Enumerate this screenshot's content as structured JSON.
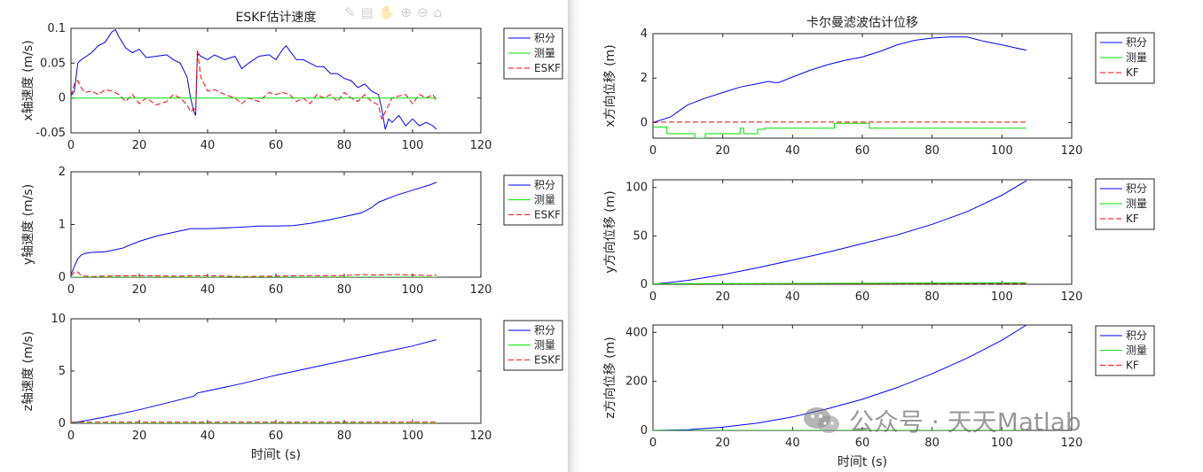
{
  "toolbar": {
    "icons": [
      "brush-icon",
      "data-tip-icon",
      "pan-icon",
      "zoom-in-icon",
      "zoom-out-icon",
      "home-icon"
    ]
  },
  "watermark": {
    "text": "公众号 · 天天Matlab"
  },
  "colors": {
    "integral": "#0000ff",
    "measure": "#00dd00",
    "filter": "#ff0000"
  },
  "chart_data": [
    {
      "id": "eskf_vx",
      "type": "line",
      "title": "ESKF估计速度",
      "xlabel": "",
      "ylabel": "x轴速度 (m/s)",
      "xlim": [
        0,
        120
      ],
      "ylim": [
        -0.05,
        0.1
      ],
      "xticks": [
        "0",
        "20",
        "40",
        "60",
        "80",
        "100",
        "120"
      ],
      "yticks": [
        "-0.05",
        "0",
        "0.05",
        "0.1"
      ],
      "ytick_values": [
        -0.05,
        0,
        0.05,
        0.1
      ],
      "legend": [
        "积分",
        "测量",
        "ESKF"
      ],
      "series": [
        {
          "name": "积分",
          "style": "solid",
          "x": [
            0,
            1,
            2,
            3,
            4,
            6,
            8,
            10,
            12,
            13,
            14,
            16,
            18,
            20,
            22,
            25,
            28,
            30,
            32,
            34,
            35,
            36,
            36.5,
            37,
            38,
            40,
            42,
            45,
            48,
            50,
            52,
            55,
            58,
            60,
            62,
            63,
            64,
            66,
            68,
            70,
            72,
            74,
            76,
            78,
            80,
            82,
            84,
            86,
            88,
            90,
            91,
            92,
            93,
            94,
            96,
            98,
            100,
            102,
            104,
            106,
            107
          ],
          "y": [
            0.003,
            0.01,
            0.05,
            0.055,
            0.058,
            0.065,
            0.075,
            0.08,
            0.095,
            0.098,
            0.088,
            0.072,
            0.065,
            0.07,
            0.058,
            0.06,
            0.062,
            0.055,
            0.05,
            0.03,
            0.0,
            -0.02,
            -0.025,
            0.065,
            0.06,
            0.055,
            0.062,
            0.055,
            0.06,
            0.042,
            0.05,
            0.06,
            0.062,
            0.055,
            0.07,
            0.075,
            0.068,
            0.055,
            0.055,
            0.05,
            0.045,
            0.045,
            0.035,
            0.035,
            0.028,
            0.025,
            0.015,
            0.02,
            0.01,
            0.005,
            -0.015,
            -0.045,
            -0.03,
            -0.035,
            -0.025,
            -0.04,
            -0.03,
            -0.04,
            -0.035,
            -0.04,
            -0.045
          ]
        },
        {
          "name": "测量",
          "style": "solid",
          "x": [
            0,
            107
          ],
          "y": [
            0.0,
            0.0
          ]
        },
        {
          "name": "ESKF",
          "style": "dashed",
          "x": [
            0,
            1,
            2,
            3,
            4,
            6,
            8,
            10,
            12,
            14,
            16,
            18,
            20,
            22,
            25,
            28,
            30,
            32,
            34,
            35,
            36,
            36.5,
            37,
            38,
            40,
            42,
            45,
            48,
            50,
            52,
            55,
            58,
            60,
            62,
            64,
            66,
            68,
            70,
            72,
            74,
            76,
            78,
            80,
            82,
            84,
            86,
            88,
            90,
            91,
            92,
            94,
            96,
            98,
            100,
            102,
            104,
            106,
            107
          ],
          "y": [
            0.003,
            0.02,
            0.025,
            0.015,
            0.008,
            0.01,
            0.005,
            0.012,
            0.01,
            0.005,
            -0.005,
            0.005,
            -0.008,
            0.0,
            -0.01,
            -0.005,
            0.005,
            0.0,
            -0.01,
            -0.02,
            -0.015,
            -0.02,
            0.07,
            0.03,
            0.01,
            0.012,
            0.005,
            0.0,
            -0.008,
            0.0,
            -0.005,
            0.008,
            0.005,
            0.008,
            0.005,
            -0.005,
            0.0,
            -0.008,
            0.005,
            0.0,
            0.005,
            -0.005,
            0.008,
            0.0,
            -0.005,
            0.005,
            -0.005,
            -0.01,
            -0.03,
            -0.02,
            0.0,
            0.003,
            0.005,
            -0.008,
            0.005,
            0.0,
            0.005,
            -0.005
          ]
        }
      ]
    },
    {
      "id": "eskf_vy",
      "type": "line",
      "title": "",
      "xlabel": "",
      "ylabel": "y轴速度 (m/s)",
      "xlim": [
        0,
        120
      ],
      "ylim": [
        0,
        2
      ],
      "xticks": [
        "0",
        "20",
        "40",
        "60",
        "80",
        "100",
        "120"
      ],
      "yticks": [
        "0",
        "1",
        "2"
      ],
      "ytick_values": [
        0,
        1,
        2
      ],
      "legend": [
        "积分",
        "测量",
        "ESKF"
      ],
      "series": [
        {
          "name": "积分",
          "style": "solid",
          "x": [
            0,
            1,
            2,
            3,
            4,
            6,
            10,
            15,
            20,
            25,
            30,
            35,
            40,
            50,
            55,
            60,
            65,
            70,
            75,
            80,
            85,
            88,
            90,
            95,
            100,
            105,
            107
          ],
          "y": [
            0.05,
            0.2,
            0.35,
            0.42,
            0.45,
            0.47,
            0.48,
            0.55,
            0.68,
            0.78,
            0.85,
            0.92,
            0.92,
            0.95,
            0.97,
            0.97,
            0.98,
            1.02,
            1.08,
            1.15,
            1.22,
            1.32,
            1.42,
            1.55,
            1.65,
            1.75,
            1.8
          ]
        },
        {
          "name": "测量",
          "style": "solid",
          "x": [
            0,
            107
          ],
          "y": [
            0.0,
            0.0
          ]
        },
        {
          "name": "ESKF",
          "style": "dashed",
          "x": [
            0,
            1,
            2,
            3,
            4,
            6,
            10,
            20,
            30,
            40,
            50,
            60,
            70,
            80,
            85,
            90,
            95,
            100,
            105,
            107
          ],
          "y": [
            0.02,
            0.1,
            0.1,
            0.03,
            0.02,
            0.01,
            0.02,
            0.03,
            0.02,
            0.03,
            0.01,
            0.02,
            0.03,
            0.03,
            0.05,
            0.04,
            0.05,
            0.04,
            0.03,
            0.04
          ]
        }
      ]
    },
    {
      "id": "eskf_vz",
      "type": "line",
      "title": "",
      "xlabel": "时间t (s)",
      "ylabel": "z轴速度 (m/s)",
      "xlim": [
        0,
        120
      ],
      "ylim": [
        0,
        10
      ],
      "xticks": [
        "0",
        "20",
        "40",
        "60",
        "80",
        "100",
        "120"
      ],
      "yticks": [
        "0",
        "5",
        "10"
      ],
      "ytick_values": [
        0,
        5,
        10
      ],
      "legend": [
        "积分",
        "测量",
        "ESKF"
      ],
      "series": [
        {
          "name": "积分",
          "style": "solid",
          "x": [
            0,
            10,
            20,
            30,
            36,
            37,
            40,
            50,
            60,
            70,
            80,
            90,
            100,
            107
          ],
          "y": [
            0,
            0.6,
            1.3,
            2.1,
            2.6,
            2.9,
            3.1,
            3.8,
            4.6,
            5.3,
            6.0,
            6.7,
            7.4,
            8.0
          ]
        },
        {
          "name": "测量",
          "style": "solid",
          "x": [
            0,
            107
          ],
          "y": [
            0.0,
            0.0
          ]
        },
        {
          "name": "ESKF",
          "style": "dashed",
          "x": [
            0,
            107
          ],
          "y": [
            0.1,
            0.1
          ]
        }
      ]
    },
    {
      "id": "kf_px",
      "type": "line",
      "title": "卡尔曼滤波估计位移",
      "xlabel": "",
      "ylabel": "x方向位移 (m)",
      "xlim": [
        0,
        120
      ],
      "ylim": [
        -0.7,
        4
      ],
      "xticks": [
        "0",
        "20",
        "40",
        "60",
        "80",
        "100",
        "120"
      ],
      "yticks": [
        "0",
        "2",
        "4"
      ],
      "ytick_values": [
        0,
        2,
        4
      ],
      "legend": [
        "积分",
        "测量",
        "KF"
      ],
      "series": [
        {
          "name": "积分",
          "style": "solid",
          "x": [
            0,
            5,
            10,
            15,
            20,
            25,
            30,
            33,
            35,
            36,
            40,
            45,
            50,
            55,
            60,
            65,
            70,
            75,
            80,
            85,
            90,
            95,
            100,
            107
          ],
          "y": [
            0,
            0.25,
            0.8,
            1.1,
            1.35,
            1.6,
            1.75,
            1.85,
            1.8,
            1.8,
            2.05,
            2.35,
            2.6,
            2.8,
            2.95,
            3.2,
            3.5,
            3.7,
            3.8,
            3.85,
            3.85,
            3.65,
            3.5,
            3.25
          ]
        },
        {
          "name": "测量",
          "style": "solid",
          "x": [
            0,
            4,
            4,
            12,
            12,
            15,
            15,
            25,
            25,
            26,
            26,
            30,
            30,
            32,
            32,
            52,
            52,
            62,
            62,
            107
          ],
          "y": [
            -0.2,
            -0.2,
            -0.5,
            -0.5,
            -0.7,
            -0.7,
            -0.5,
            -0.5,
            -0.25,
            -0.25,
            -0.5,
            -0.5,
            -0.3,
            -0.3,
            -0.25,
            -0.25,
            -0.03,
            -0.03,
            -0.25,
            -0.25
          ]
        },
        {
          "name": "KF",
          "style": "dashed",
          "x": [
            0,
            107
          ],
          "y": [
            0.02,
            0.02
          ]
        }
      ]
    },
    {
      "id": "kf_py",
      "type": "line",
      "title": "",
      "xlabel": "",
      "ylabel": "y方向位移 (m)",
      "xlim": [
        0,
        120
      ],
      "ylim": [
        0,
        108
      ],
      "xticks": [
        "0",
        "20",
        "40",
        "60",
        "80",
        "100",
        "120"
      ],
      "yticks": [
        "0",
        "50",
        "100"
      ],
      "ytick_values": [
        0,
        50,
        100
      ],
      "legend": [
        "积分",
        "测量",
        "KF"
      ],
      "series": [
        {
          "name": "积分",
          "style": "solid",
          "x": [
            0,
            10,
            20,
            30,
            40,
            50,
            60,
            70,
            80,
            90,
            100,
            107
          ],
          "y": [
            0,
            4,
            10,
            17,
            25,
            33,
            42,
            51,
            62,
            75,
            92,
            107
          ]
        },
        {
          "name": "测量",
          "style": "solid",
          "x": [
            0,
            107
          ],
          "y": [
            0.5,
            1.5
          ]
        },
        {
          "name": "KF",
          "style": "dashed",
          "x": [
            0,
            107
          ],
          "y": [
            0.3,
            0.8
          ]
        }
      ]
    },
    {
      "id": "kf_pz",
      "type": "line",
      "title": "",
      "xlabel": "时间t (s)",
      "ylabel": "z方向位移 (m)",
      "xlim": [
        0,
        120
      ],
      "ylim": [
        0,
        430
      ],
      "xticks": [
        "0",
        "20",
        "40",
        "60",
        "80",
        "100",
        "120"
      ],
      "yticks": [
        "0",
        "200",
        "400"
      ],
      "ytick_values": [
        0,
        200,
        400
      ],
      "legend": [
        "积分",
        "测量",
        "KF"
      ],
      "series": [
        {
          "name": "积分",
          "style": "solid",
          "x": [
            0,
            10,
            20,
            30,
            40,
            50,
            60,
            70,
            80,
            90,
            100,
            107
          ],
          "y": [
            0,
            3,
            13,
            30,
            55,
            88,
            127,
            175,
            231,
            295,
            368,
            430
          ]
        },
        {
          "name": "测量",
          "style": "solid",
          "x": [
            0,
            107
          ],
          "y": [
            0,
            0
          ]
        },
        {
          "name": "KF",
          "style": "dashed",
          "x": [
            0,
            107
          ],
          "y": [
            0,
            0
          ]
        }
      ]
    }
  ]
}
